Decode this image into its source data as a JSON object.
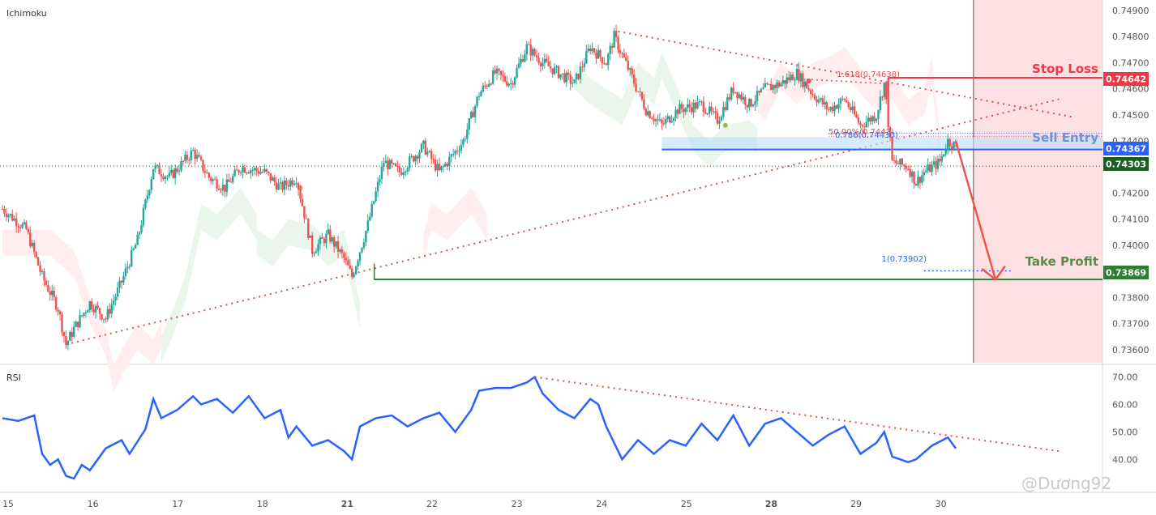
{
  "chart_data": [
    {
      "type": "candlestick",
      "title": "Ichimoku",
      "y_ticks": [
        0.749,
        0.748,
        0.747,
        0.746,
        0.745,
        0.744,
        0.743,
        0.742,
        0.741,
        0.74,
        0.739,
        0.738,
        0.737,
        0.736
      ],
      "y_tick_labels": [
        "0.74900",
        "0.74800",
        "0.74700",
        "0.74600",
        "0.74500",
        "0.74400",
        "0.74300",
        "0.74200",
        "0.74100",
        "0.74000",
        "0.73900",
        "0.73800",
        "0.73700",
        "0.73600"
      ],
      "ylim": [
        0.7355,
        0.7494
      ],
      "x_ticks": [
        "15",
        "16",
        "17",
        "18",
        "21",
        "22",
        "23",
        "24",
        "25",
        "28",
        "29",
        "30"
      ],
      "x_ticks_bold": [
        "21",
        "28"
      ],
      "close_path": [
        [
          0,
          0.7414
        ],
        [
          3,
          0.7406
        ],
        [
          5,
          0.7388
        ],
        [
          7,
          0.7376
        ],
        [
          8,
          0.7362
        ],
        [
          9,
          0.7368
        ],
        [
          11,
          0.7378
        ],
        [
          13,
          0.7372
        ],
        [
          15,
          0.7386
        ],
        [
          17,
          0.7402
        ],
        [
          19,
          0.743
        ],
        [
          21,
          0.7426
        ],
        [
          24,
          0.7436
        ],
        [
          26,
          0.7426
        ],
        [
          28,
          0.7422
        ],
        [
          30,
          0.743
        ],
        [
          33,
          0.7428
        ],
        [
          35,
          0.7422
        ],
        [
          37,
          0.7426
        ],
        [
          39,
          0.7398
        ],
        [
          41,
          0.7404
        ],
        [
          43,
          0.7395
        ],
        [
          44,
          0.7388
        ],
        [
          46,
          0.7408
        ],
        [
          48,
          0.7432
        ],
        [
          50,
          0.7428
        ],
        [
          53,
          0.7438
        ],
        [
          55,
          0.7428
        ],
        [
          58,
          0.744
        ],
        [
          60,
          0.7458
        ],
        [
          62,
          0.7466
        ],
        [
          64,
          0.7462
        ],
        [
          66,
          0.7476
        ],
        [
          68,
          0.747
        ],
        [
          70,
          0.7466
        ],
        [
          72,
          0.7462
        ],
        [
          74,
          0.7476
        ],
        [
          76,
          0.747
        ],
        [
          77,
          0.748
        ],
        [
          79,
          0.7466
        ],
        [
          81,
          0.7452
        ],
        [
          83,
          0.7446
        ],
        [
          85,
          0.7452
        ],
        [
          88,
          0.7454
        ],
        [
          90,
          0.7448
        ],
        [
          92,
          0.746
        ],
        [
          94,
          0.7454
        ],
        [
          96,
          0.746
        ],
        [
          98,
          0.7462
        ],
        [
          100,
          0.7466
        ],
        [
          102,
          0.7458
        ],
        [
          104,
          0.7452
        ],
        [
          106,
          0.7456
        ],
        [
          108,
          0.7446
        ],
        [
          110,
          0.745
        ],
        [
          111,
          0.7462
        ],
        [
          112,
          0.7432
        ],
        [
          114,
          0.743
        ],
        [
          115,
          0.7424
        ],
        [
          116,
          0.7428
        ],
        [
          118,
          0.7432
        ],
        [
          119,
          0.744
        ],
        [
          120,
          0.7438
        ]
      ],
      "annotations": {
        "stop_loss": {
          "label": "Stop Loss",
          "price": 0.74642,
          "price_label": "0.74642",
          "color": "#f23645"
        },
        "sell_entry": {
          "label": "Sell Entry",
          "price": 0.74367,
          "price_label": "0.74367",
          "color": "#2962ff"
        },
        "take_profit": {
          "label": "Take Profit",
          "price": 0.73869,
          "price_label": "0.73869",
          "color": "#2e7d32"
        },
        "current_price": {
          "price": 0.74303,
          "price_label": "0.74303",
          "color": "#1b5e20"
        },
        "fib_1618": {
          "label": "1.618(0.74638)",
          "price": 0.74638
        },
        "fib_50": {
          "label": "50.00%(0.7443)",
          "price": 0.7443
        },
        "fib_786": {
          "label": "0.786(0.74430)",
          "price": 0.7443
        },
        "fib_1": {
          "label": "1(0.73902)",
          "price": 0.73902
        }
      },
      "colors": {
        "up": "#26a69a",
        "down": "#ef5350",
        "bull_cloud": "#e8f5e9",
        "bear_cloud": "#ffebee",
        "trendline": "#e05050"
      }
    },
    {
      "type": "line",
      "title": "RSI",
      "y_ticks": [
        70,
        60,
        50,
        40
      ],
      "y_tick_labels": [
        "70.00",
        "60.00",
        "50.00",
        "40.00"
      ],
      "ylim": [
        28,
        74
      ],
      "series": [
        {
          "values": [
            [
              0,
              55
            ],
            [
              2,
              54
            ],
            [
              4,
              56
            ],
            [
              5,
              42
            ],
            [
              6,
              38
            ],
            [
              7,
              40
            ],
            [
              8,
              34
            ],
            [
              9,
              33
            ],
            [
              10,
              38
            ],
            [
              11,
              36
            ],
            [
              13,
              44
            ],
            [
              15,
              47
            ],
            [
              16,
              42
            ],
            [
              18,
              51
            ],
            [
              19,
              62
            ],
            [
              20,
              55
            ],
            [
              22,
              58
            ],
            [
              24,
              63
            ],
            [
              25,
              60
            ],
            [
              27,
              62
            ],
            [
              29,
              57
            ],
            [
              31,
              63
            ],
            [
              33,
              55
            ],
            [
              35,
              58
            ],
            [
              36,
              48
            ],
            [
              37,
              52
            ],
            [
              39,
              45
            ],
            [
              41,
              47
            ],
            [
              43,
              43
            ],
            [
              44,
              40
            ],
            [
              45,
              52
            ],
            [
              47,
              55
            ],
            [
              49,
              56
            ],
            [
              51,
              52
            ],
            [
              53,
              55
            ],
            [
              55,
              57
            ],
            [
              57,
              50
            ],
            [
              59,
              58
            ],
            [
              60,
              65
            ],
            [
              62,
              66
            ],
            [
              64,
              66
            ],
            [
              66,
              68
            ],
            [
              67,
              70
            ],
            [
              68,
              64
            ],
            [
              70,
              58
            ],
            [
              72,
              55
            ],
            [
              74,
              62
            ],
            [
              75,
              60
            ],
            [
              76,
              52
            ],
            [
              78,
              40
            ],
            [
              80,
              47
            ],
            [
              82,
              42
            ],
            [
              84,
              47
            ],
            [
              86,
              45
            ],
            [
              88,
              53
            ],
            [
              90,
              47
            ],
            [
              92,
              56
            ],
            [
              94,
              45
            ],
            [
              96,
              53
            ],
            [
              98,
              55
            ],
            [
              100,
              50
            ],
            [
              102,
              45
            ],
            [
              104,
              49
            ],
            [
              106,
              52
            ],
            [
              108,
              42
            ],
            [
              110,
              46
            ],
            [
              111,
              50
            ],
            [
              112,
              41
            ],
            [
              114,
              39
            ],
            [
              115,
              40
            ],
            [
              117,
              45
            ],
            [
              119,
              48
            ],
            [
              120,
              44
            ]
          ],
          "color": "#2962ff"
        }
      ],
      "trendline": {
        "from": [
          67,
          70
        ],
        "to": [
          133,
          43
        ],
        "color": "#e05050"
      }
    }
  ],
  "watermark": "@Dương92"
}
